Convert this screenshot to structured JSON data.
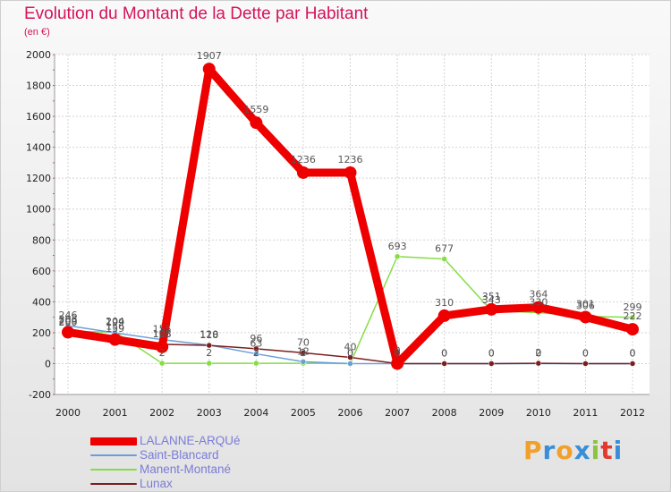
{
  "chart_data": {
    "type": "line",
    "title": "Evolution du Montant de la Dette par Habitant",
    "subtitle": "(en €)",
    "xlabel": "",
    "ylabel": "",
    "x": [
      "2000",
      "2001",
      "2002",
      "2003",
      "2004",
      "2005",
      "2006",
      "2007",
      "2008",
      "2009",
      "2010",
      "2011",
      "2012"
    ],
    "ylim": [
      -200,
      2000
    ],
    "yticks": [
      "-200",
      "0",
      "200",
      "400",
      "600",
      "800",
      "1000",
      "1200",
      "1400",
      "1600",
      "1800",
      "2000"
    ],
    "grid": true,
    "series": [
      {
        "name": "LALANNE-ARQUé",
        "color": "#ee0000",
        "values": [
          203,
          156,
          108,
          1907,
          1559,
          1236,
          1236,
          0,
          310,
          351,
          364,
          301,
          222
        ]
      },
      {
        "name": "Saint-Blancard",
        "color": "#6a9fd8",
        "values": [
          246,
          199,
          155,
          120,
          63,
          12,
          0,
          0,
          0,
          0,
          0,
          0,
          0
        ]
      },
      {
        "name": "Manent-Montané",
        "color": "#86dd44",
        "values": [
          209,
          204,
          2,
          2,
          2,
          2,
          0,
          693,
          677,
          343,
          330,
          306,
          299
        ]
      },
      {
        "name": "Lunax",
        "color": "#7b1e1e",
        "values": [
          200,
          159,
          125,
          118,
          96,
          70,
          40,
          0,
          0,
          0,
          2,
          0,
          0
        ]
      }
    ],
    "legend_position": "bottom-left"
  },
  "branding": {
    "logo_text": "Proxiti",
    "logo_colors": [
      "#f2a02c",
      "#3a8ed8",
      "#f2a02c",
      "#3a8ed8",
      "#8bc43f",
      "#e23b2e",
      "#3a8ed8"
    ]
  }
}
